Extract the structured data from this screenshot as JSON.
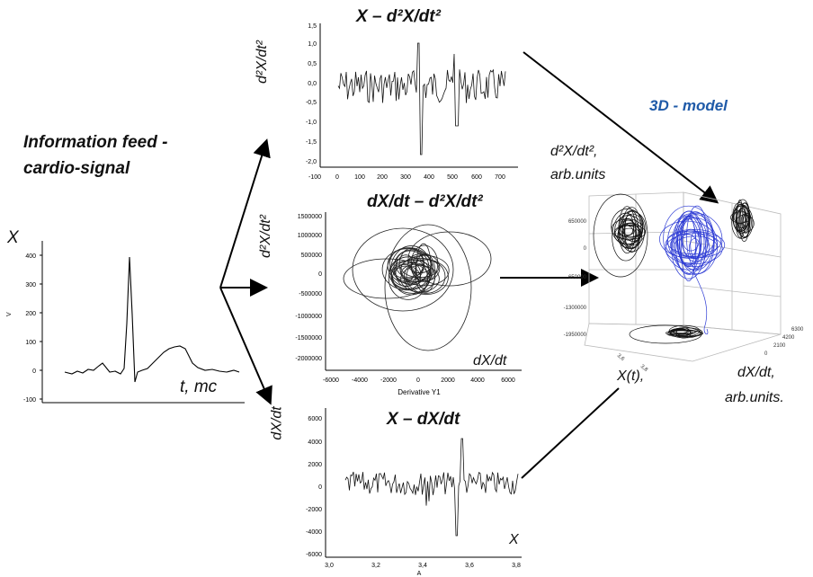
{
  "info_feed": {
    "line1": "Information feed -",
    "line2": "cardio-signal"
  },
  "ecg_panel": {
    "y_label": "X",
    "y_axis_small": "V",
    "x_label": "t, mc",
    "y_ticks": [
      "400",
      "300",
      "200",
      "100",
      "0",
      "-100"
    ]
  },
  "panel_x_d2x": {
    "title": "X – d²X/dt²",
    "y_label": "d²X/dt²",
    "y_ticks": [
      "1,5",
      "1,0",
      "0,5",
      "0,0",
      "-0,5",
      "-1,0",
      "-1,5",
      "-2,0"
    ],
    "x_ticks": [
      "-100",
      "0",
      "100",
      "200",
      "300",
      "400",
      "500",
      "600",
      "700"
    ]
  },
  "panel_dx_d2x": {
    "title": "dX/dt – d²X/dt²",
    "y_label": "d²X/dt²",
    "x_label": "dX/dt",
    "x_axis_small": "Derivative Y1",
    "y_ticks": [
      "1500000",
      "1000000",
      "500000",
      "0",
      "-500000",
      "-1000000",
      "-1500000",
      "-2000000"
    ],
    "x_ticks": [
      "-6000",
      "-4000",
      "-2000",
      "0",
      "2000",
      "4000",
      "6000"
    ]
  },
  "panel_x_dx": {
    "title": "X – dX/dt",
    "y_label": "dX/dt",
    "x_label": "X",
    "x_axis_small": "A",
    "y_ticks": [
      "6000",
      "4000",
      "2000",
      "0",
      "-2000",
      "-4000",
      "-6000"
    ],
    "x_ticks": [
      "3,0",
      "3,2",
      "3,4",
      "3,6",
      "3,8"
    ]
  },
  "model_3d": {
    "title": "3D - model",
    "z_label_line1": "d²X/dt²,",
    "z_label_line2": "arb.units",
    "x_label": "X(t),",
    "y_label_line1": "dX/dt,",
    "y_label_line2": "arb.units.",
    "z_ticks": [
      "650000",
      "0",
      "-650000",
      "-1300000",
      "-1950000"
    ],
    "bottom_ticks": [
      "3,6",
      "3,8"
    ],
    "right_ticks": [
      "6300",
      "4200",
      "2100",
      "0"
    ],
    "colors": {
      "black_trace": "#111111",
      "blue_trace": "#2c3ad4"
    }
  }
}
